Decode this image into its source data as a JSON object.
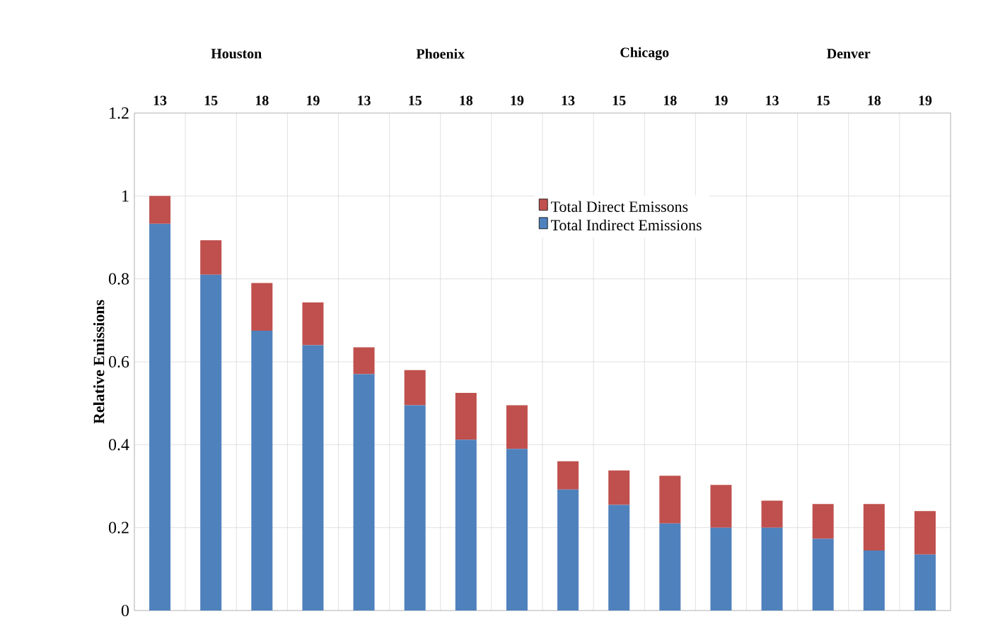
{
  "chart_data": {
    "type": "bar",
    "stacked": true,
    "ylabel": "Relative Emissions",
    "categories": [
      "13",
      "15",
      "18",
      "19",
      "13",
      "15",
      "18",
      "19",
      "13",
      "15",
      "18",
      "19",
      "13",
      "15",
      "18",
      "19"
    ],
    "annotations": [
      "Houston",
      "Phoenix",
      "Chicago",
      "Denver"
    ],
    "series": [
      {
        "name": "Total Indirect Emissions",
        "color": "#4f81bd",
        "values": [
          0.933,
          0.81,
          0.675,
          0.64,
          0.57,
          0.495,
          0.412,
          0.39,
          0.292,
          0.255,
          0.21,
          0.2,
          0.2,
          0.173,
          0.145,
          0.135
        ]
      },
      {
        "name": "Total Direct Emissons",
        "color": "#c0504d",
        "values": [
          0.067,
          0.083,
          0.115,
          0.103,
          0.065,
          0.085,
          0.113,
          0.105,
          0.068,
          0.083,
          0.115,
          0.103,
          0.065,
          0.084,
          0.112,
          0.105
        ]
      }
    ],
    "ylim": [
      0,
      1.2
    ],
    "yticks": [
      0,
      {
        "value": 0.2,
        "label": "0.2"
      },
      {
        "value": 0.4,
        "label": "0.4"
      },
      {
        "value": 0.6,
        "label": "0.6"
      },
      {
        "value": 0.8,
        "label": "0.8"
      },
      1,
      {
        "value": 1.2,
        "label": "1.2"
      }
    ],
    "grid": true,
    "legend": "top"
  }
}
